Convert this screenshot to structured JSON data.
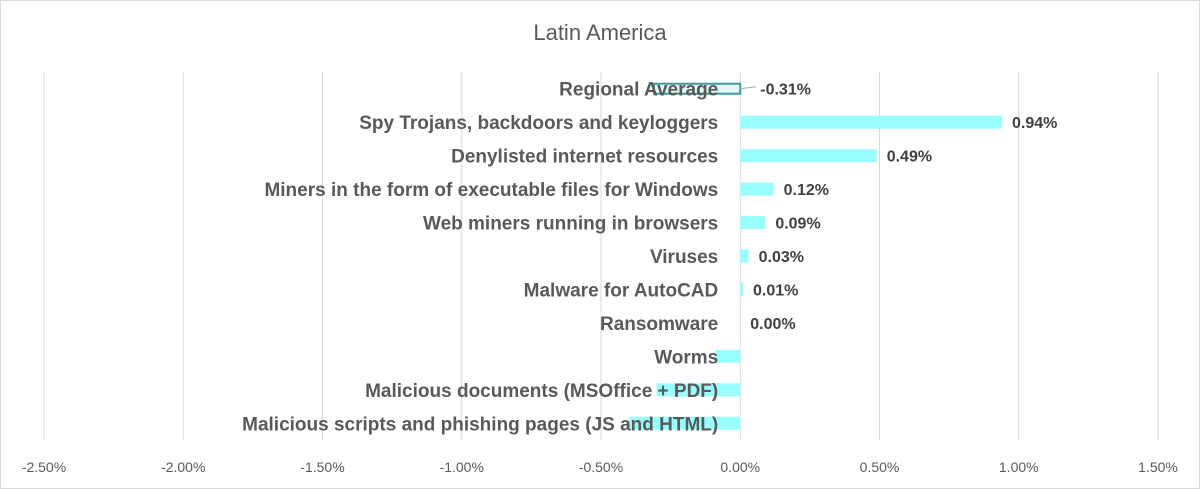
{
  "chart_data": {
    "type": "bar",
    "orientation": "horizontal",
    "title": "Latin America",
    "categories": [
      "Regional  Average",
      "Spy Trojans, backdoors and keyloggers",
      "Denylisted internet resources",
      "Miners in the form of executable files for Windows",
      "Web miners running in browsers",
      "Viruses",
      "Malware for AutoCAD",
      "Ransomware",
      "Worms",
      "Malicious documents (MSOffice + PDF)",
      "Malicious scripts and phishing pages (JS and HTML)"
    ],
    "values": [
      -0.31,
      0.94,
      0.49,
      0.12,
      0.09,
      0.03,
      0.01,
      0.0,
      -0.09,
      -0.3,
      -0.4
    ],
    "data_labels": [
      "-0.31%",
      "0.94%",
      "0.49%",
      "0.12%",
      "0.09%",
      "0.03%",
      "0.01%",
      "0.00%",
      "",
      "",
      ""
    ],
    "xlim": [
      -2.5,
      1.5
    ],
    "xticks": [
      -2.5,
      -2.0,
      -1.5,
      -1.0,
      -0.5,
      0.0,
      0.5,
      1.0,
      1.5
    ],
    "xtick_labels": [
      "-2.50%",
      "-2.00%",
      "-1.50%",
      "-1.00%",
      "-0.50%",
      "0.00%",
      "0.50%",
      "1.00%",
      "1.50%"
    ],
    "grid": "vertical",
    "legend": "none",
    "colors": {
      "bar": "#99ffff",
      "average_bar_fill": "#33c4c4",
      "average_bar_border": "#3d9b9b",
      "gridline": "#d9d9d9",
      "text": "#595959"
    }
  }
}
